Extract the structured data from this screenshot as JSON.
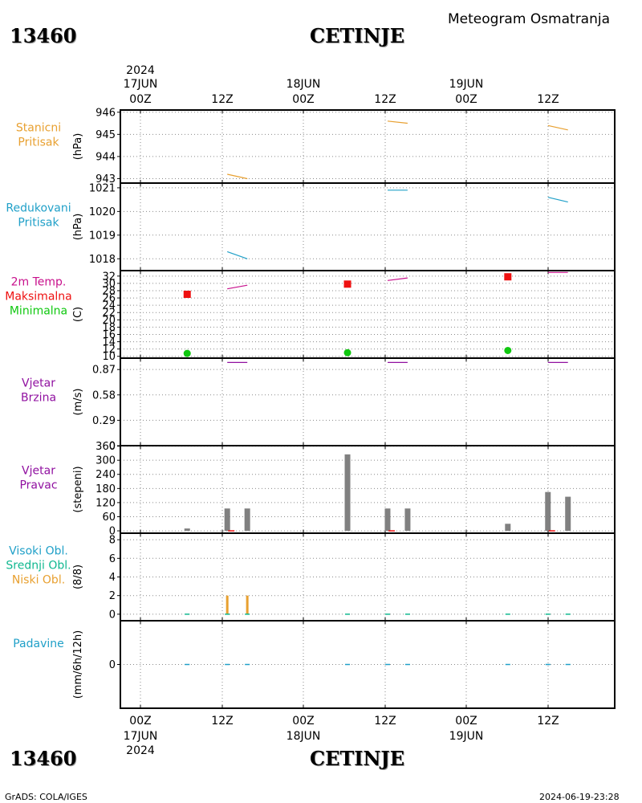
{
  "header": {
    "station_id": "13460",
    "station_name": "CETINJE",
    "heading": "Meteogram Osmatranja"
  },
  "footer": {
    "credit": "GrADS: COLA/IGES",
    "timestamp": "2024-06-19-23:28"
  },
  "chart_data": {
    "type": "meteogram",
    "time_axis": {
      "year": "2024",
      "tick_labels": [
        "00Z",
        "12Z",
        "00Z",
        "12Z",
        "00Z",
        "12Z"
      ],
      "date_labels": [
        {
          "tick": 0,
          "text": "17JUN"
        },
        {
          "tick": 2,
          "text": "18JUN"
        },
        {
          "tick": 4,
          "text": "19JUN"
        }
      ],
      "start": "2024-06-16T20:00Z",
      "end": "2024-06-19T22:00Z"
    },
    "panels": [
      {
        "id": "pressure-station",
        "labels": [
          {
            "text": "Stanicni",
            "color": "#e8a030"
          },
          {
            "text": "Pritisak",
            "color": "#e8a030"
          }
        ],
        "unit": "(hPa)",
        "ylim": [
          942.8,
          946.1
        ],
        "yticks": [
          943,
          944,
          945,
          946
        ],
        "color": "#e8a030",
        "series": [
          {
            "x": [
              "2024-06-17T12:00Z",
              "2024-06-17T15:00Z"
            ],
            "y": [
              943.2,
              943.0
            ]
          },
          {
            "x": [
              "2024-06-18T12:00Z",
              "2024-06-18T15:00Z"
            ],
            "y": [
              945.6,
              945.5
            ]
          },
          {
            "x": [
              "2024-06-19T12:00Z",
              "2024-06-19T15:00Z"
            ],
            "y": [
              945.4,
              945.2
            ]
          }
        ]
      },
      {
        "id": "pressure-reduced",
        "labels": [
          {
            "text": "Redukovani",
            "color": "#20a0c8"
          },
          {
            "text": "Pritisak",
            "color": "#20a0c8"
          }
        ],
        "unit": "(hPa)",
        "ylim": [
          1017.5,
          1021.2
        ],
        "yticks": [
          1018,
          1019,
          1020,
          1021
        ],
        "color": "#20a0c8",
        "series": [
          {
            "x": [
              "2024-06-17T12:00Z",
              "2024-06-17T15:00Z"
            ],
            "y": [
              1018.3,
              1018.0
            ]
          },
          {
            "x": [
              "2024-06-18T12:00Z",
              "2024-06-18T15:00Z"
            ],
            "y": [
              1020.9,
              1020.9
            ]
          },
          {
            "x": [
              "2024-06-19T12:00Z",
              "2024-06-19T15:00Z"
            ],
            "y": [
              1020.6,
              1020.4
            ]
          }
        ]
      },
      {
        "id": "temperature",
        "labels": [
          {
            "text": "2m Temp.",
            "color": "#c8108c"
          },
          {
            "text": "Maksimalna",
            "color": "#ee1010"
          },
          {
            "text": "Minimalna",
            "color": "#10c810"
          }
        ],
        "unit": "(C)",
        "ylim": [
          9.5,
          33.5
        ],
        "yticks": [
          10,
          12,
          14,
          16,
          18,
          20,
          22,
          24,
          26,
          28,
          30,
          32
        ],
        "color": "#c8108c",
        "series": [
          {
            "x": [
              "2024-06-17T12:00Z",
              "2024-06-17T15:00Z"
            ],
            "y": [
              28.5,
              29.5
            ]
          },
          {
            "x": [
              "2024-06-18T12:00Z",
              "2024-06-18T15:00Z"
            ],
            "y": [
              30.8,
              31.5
            ]
          },
          {
            "x": [
              "2024-06-19T12:00Z",
              "2024-06-19T15:00Z"
            ],
            "y": [
              33.0,
              33.0
            ]
          }
        ],
        "max_points": {
          "color": "#ee1010",
          "x": [
            "2024-06-17T06:00Z",
            "2024-06-18T06:00Z",
            "2024-06-19T06:00Z"
          ],
          "y": [
            27.0,
            29.8,
            31.8
          ]
        },
        "min_points": {
          "color": "#10c810",
          "x": [
            "2024-06-17T06:00Z",
            "2024-06-18T06:00Z",
            "2024-06-19T06:00Z"
          ],
          "y": [
            10.8,
            11.0,
            11.6
          ]
        }
      },
      {
        "id": "wind-speed",
        "labels": [
          {
            "text": "Vjetar",
            "color": "#9010a0"
          },
          {
            "text": "Brzina",
            "color": "#9010a0"
          }
        ],
        "unit": "(m/s)",
        "ylim": [
          0,
          1.0
        ],
        "yticks": [
          0,
          0.29,
          0.58,
          0.87
        ],
        "color": "#9010a0",
        "series": [
          {
            "x": [
              "2024-06-17T12:00Z",
              "2024-06-17T15:00Z"
            ],
            "y": [
              0.95,
              0.95
            ]
          },
          {
            "x": [
              "2024-06-18T12:00Z",
              "2024-06-18T15:00Z"
            ],
            "y": [
              0.95,
              0.95
            ]
          },
          {
            "x": [
              "2024-06-19T12:00Z",
              "2024-06-19T15:00Z"
            ],
            "y": [
              0.95,
              0.95
            ]
          }
        ]
      },
      {
        "id": "wind-direction",
        "labels": [
          {
            "text": "Vjetar",
            "color": "#9010a0"
          },
          {
            "text": "Pravac",
            "color": "#9010a0"
          }
        ],
        "unit": "(stepeni)",
        "ylim": [
          -10,
          362
        ],
        "yticks": [
          0,
          60,
          120,
          180,
          240,
          300,
          360
        ],
        "color": "#808080",
        "bars": {
          "x": [
            "2024-06-17T06:00Z",
            "2024-06-17T12:00Z",
            "2024-06-17T15:00Z",
            "2024-06-18T06:00Z",
            "2024-06-18T12:00Z",
            "2024-06-18T15:00Z",
            "2024-06-19T06:00Z",
            "2024-06-19T12:00Z",
            "2024-06-19T15:00Z"
          ],
          "y": [
            10,
            95,
            95,
            325,
            95,
            95,
            30,
            165,
            145
          ]
        },
        "marks": {
          "color": "#ee1010",
          "x": [
            "2024-06-17T12:00Z",
            "2024-06-18T12:00Z",
            "2024-06-19T12:00Z"
          ],
          "y": [
            0,
            0,
            0
          ]
        }
      },
      {
        "id": "clouds",
        "labels": [
          {
            "text": "Visoki Obl.",
            "color": "#20a0c8"
          },
          {
            "text": "Srednji Obl.",
            "color": "#10b890"
          },
          {
            "text": "Niski Obl.",
            "color": "#e8a030"
          }
        ],
        "unit": "(8/8)",
        "ylim": [
          -0.7,
          8.7
        ],
        "yticks": [
          0,
          2,
          4,
          6,
          8
        ],
        "low_color": "#e8a030",
        "bars": {
          "x": [
            "2024-06-17T12:00Z",
            "2024-06-17T15:00Z"
          ],
          "y": [
            2,
            2
          ]
        },
        "zero_marks": {
          "color": "#10b890",
          "x": [
            "2024-06-17T06:00Z",
            "2024-06-17T12:00Z",
            "2024-06-17T15:00Z",
            "2024-06-18T06:00Z",
            "2024-06-18T12:00Z",
            "2024-06-18T15:00Z",
            "2024-06-19T06:00Z",
            "2024-06-19T12:00Z",
            "2024-06-19T15:00Z"
          ],
          "y": [
            0,
            0,
            0,
            0,
            0,
            0,
            0,
            0,
            0
          ]
        }
      },
      {
        "id": "precipitation",
        "labels": [
          {
            "text": "Padavine",
            "color": "#20a0c8"
          }
        ],
        "unit": "(mm/6h/12h)",
        "ylim": [
          -4.8,
          4.8
        ],
        "yticks": [
          0
        ],
        "color": "#20a0c8",
        "zero_marks": {
          "x": [
            "2024-06-17T06:00Z",
            "2024-06-17T12:00Z",
            "2024-06-17T15:00Z",
            "2024-06-18T06:00Z",
            "2024-06-18T12:00Z",
            "2024-06-18T15:00Z",
            "2024-06-19T06:00Z",
            "2024-06-19T12:00Z",
            "2024-06-19T15:00Z"
          ],
          "y": [
            0,
            0,
            0,
            0,
            0,
            0,
            0,
            0,
            0
          ]
        }
      }
    ],
    "grid": true
  }
}
